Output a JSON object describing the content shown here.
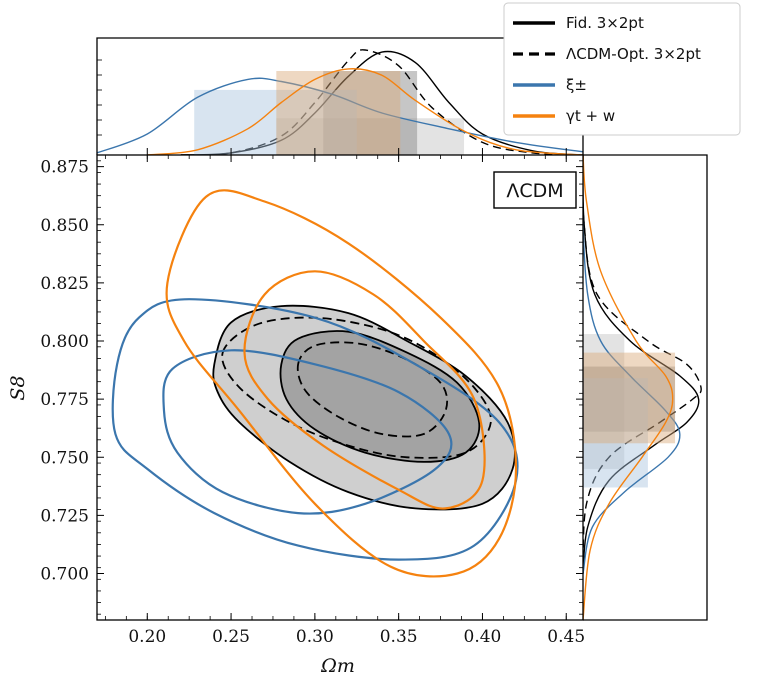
{
  "chart_data": {
    "type": "contour",
    "model_label": "ΛCDM",
    "xlabel": "Ωm",
    "ylabel": "S8",
    "xlim": [
      0.17,
      0.46
    ],
    "ylim": [
      0.68,
      0.88
    ],
    "xticks": [
      "0.20",
      "0.25",
      "0.30",
      "0.35",
      "0.40",
      "0.45"
    ],
    "yticks": [
      "0.700",
      "0.725",
      "0.750",
      "0.775",
      "0.800",
      "0.825",
      "0.850",
      "0.875"
    ],
    "legend_position": "top-right",
    "series": [
      {
        "name": "Fid. 3×2pt",
        "color": "#000000",
        "linestyle": "solid",
        "fill": "#808080",
        "mean": [
          0.338,
          0.775
        ],
        "contours": [
          {
            "level": "95%",
            "points": [
              [
                0.24,
                0.79
              ],
              [
                0.25,
                0.808
              ],
              [
                0.28,
                0.815
              ],
              [
                0.32,
                0.812
              ],
              [
                0.355,
                0.8
              ],
              [
                0.39,
                0.785
              ],
              [
                0.415,
                0.765
              ],
              [
                0.418,
                0.745
              ],
              [
                0.4,
                0.73
              ],
              [
                0.36,
                0.728
              ],
              [
                0.32,
                0.735
              ],
              [
                0.285,
                0.748
              ],
              [
                0.255,
                0.765
              ],
              [
                0.242,
                0.778
              ]
            ]
          },
          {
            "level": "68%",
            "points": [
              [
                0.28,
                0.79
              ],
              [
                0.29,
                0.801
              ],
              [
                0.32,
                0.804
              ],
              [
                0.355,
                0.795
              ],
              [
                0.385,
                0.782
              ],
              [
                0.398,
                0.765
              ],
              [
                0.39,
                0.752
              ],
              [
                0.365,
                0.748
              ],
              [
                0.33,
                0.752
              ],
              [
                0.3,
                0.762
              ],
              [
                0.283,
                0.775
              ]
            ]
          }
        ],
        "marginal_x": {
          "x": [
            0.22,
            0.25,
            0.28,
            0.3,
            0.32,
            0.34,
            0.36,
            0.38,
            0.4,
            0.43,
            0.46
          ],
          "density": [
            0.0,
            0.02,
            0.14,
            0.4,
            0.75,
            0.98,
            0.88,
            0.5,
            0.2,
            0.04,
            0.0
          ]
        },
        "marginal_y": {
          "y": [
            0.7,
            0.72,
            0.74,
            0.755,
            0.765,
            0.775,
            0.785,
            0.8,
            0.82,
            0.85,
            0.88
          ],
          "density": [
            0.0,
            0.04,
            0.22,
            0.6,
            0.88,
            0.98,
            0.82,
            0.4,
            0.1,
            0.01,
            0.0
          ]
        },
        "interval_x_68": [
          0.305,
          0.361
        ],
        "interval_x_95": [
          0.277,
          0.389
        ],
        "interval_y_68": [
          0.761,
          0.789
        ],
        "interval_y_95": [
          0.745,
          0.803
        ]
      },
      {
        "name": "ΛCDM-Opt. 3×2pt",
        "color": "#000000",
        "linestyle": "dashed",
        "fill": "none",
        "mean": [
          0.33,
          0.78
        ],
        "contours": [
          {
            "level": "95%",
            "points": [
              [
                0.245,
                0.795
              ],
              [
                0.265,
                0.807
              ],
              [
                0.3,
                0.81
              ],
              [
                0.34,
                0.805
              ],
              [
                0.37,
                0.795
              ],
              [
                0.395,
                0.78
              ],
              [
                0.405,
                0.765
              ],
              [
                0.39,
                0.752
              ],
              [
                0.355,
                0.75
              ],
              [
                0.32,
                0.755
              ],
              [
                0.285,
                0.765
              ],
              [
                0.255,
                0.78
              ]
            ]
          },
          {
            "level": "68%",
            "points": [
              [
                0.29,
                0.79
              ],
              [
                0.3,
                0.798
              ],
              [
                0.325,
                0.799
              ],
              [
                0.352,
                0.793
              ],
              [
                0.375,
                0.782
              ],
              [
                0.378,
                0.77
              ],
              [
                0.365,
                0.76
              ],
              [
                0.34,
                0.76
              ],
              [
                0.315,
                0.767
              ],
              [
                0.295,
                0.778
              ]
            ]
          }
        ],
        "marginal_x": {
          "x": [
            0.22,
            0.25,
            0.28,
            0.3,
            0.32,
            0.33,
            0.35,
            0.37,
            0.4,
            0.43,
            0.46
          ],
          "density": [
            0.0,
            0.02,
            0.18,
            0.5,
            0.9,
            1.0,
            0.85,
            0.45,
            0.12,
            0.02,
            0.0
          ]
        },
        "marginal_y": {
          "y": [
            0.7,
            0.73,
            0.75,
            0.765,
            0.775,
            0.78,
            0.79,
            0.8,
            0.82,
            0.85,
            0.88
          ],
          "density": [
            0.0,
            0.03,
            0.22,
            0.65,
            0.93,
            1.0,
            0.88,
            0.55,
            0.12,
            0.01,
            0.0
          ]
        }
      },
      {
        "name": "ξ±",
        "color": "#3b76ad",
        "linestyle": "solid",
        "fill": "#a9c4de",
        "mean": [
          0.265,
          0.763
        ],
        "contours": [
          {
            "level": "95%",
            "points": [
              [
                0.181,
                0.76
              ],
              [
                0.182,
                0.79
              ],
              [
                0.195,
                0.81
              ],
              [
                0.225,
                0.818
              ],
              [
                0.3,
                0.81
              ],
              [
                0.36,
                0.79
              ],
              [
                0.41,
                0.765
              ],
              [
                0.42,
                0.74
              ],
              [
                0.395,
                0.712
              ],
              [
                0.35,
                0.706
              ],
              [
                0.29,
                0.712
              ],
              [
                0.24,
                0.726
              ],
              [
                0.2,
                0.745
              ]
            ]
          },
          {
            "level": "68%",
            "points": [
              [
                0.21,
                0.77
              ],
              [
                0.215,
                0.788
              ],
              [
                0.25,
                0.796
              ],
              [
                0.3,
                0.79
              ],
              [
                0.35,
                0.778
              ],
              [
                0.38,
                0.76
              ],
              [
                0.372,
                0.745
              ],
              [
                0.33,
                0.73
              ],
              [
                0.29,
                0.726
              ],
              [
                0.245,
                0.735
              ],
              [
                0.218,
                0.752
              ]
            ]
          }
        ],
        "marginal_x": {
          "x": [
            0.17,
            0.2,
            0.23,
            0.26,
            0.28,
            0.31,
            0.34,
            0.38,
            0.42,
            0.46
          ],
          "density": [
            0.02,
            0.2,
            0.55,
            0.72,
            0.7,
            0.58,
            0.4,
            0.25,
            0.12,
            0.03
          ]
        },
        "marginal_y": {
          "y": [
            0.7,
            0.72,
            0.735,
            0.75,
            0.76,
            0.77,
            0.785,
            0.8,
            0.82,
            0.85,
            0.88
          ],
          "density": [
            0.0,
            0.08,
            0.35,
            0.72,
            0.82,
            0.7,
            0.4,
            0.15,
            0.04,
            0.0,
            0.0
          ]
        },
        "interval_x_68": [
          0.228,
          0.325
        ],
        "interval_y_68": [
          0.737,
          0.784
        ]
      },
      {
        "name": "γt + w",
        "color": "#f5820f",
        "linestyle": "solid",
        "fill": "#d9a878",
        "mean": [
          0.315,
          0.775
        ],
        "contours": [
          {
            "level": "95%",
            "points": [
              [
                0.212,
                0.825
              ],
              [
                0.235,
                0.862
              ],
              [
                0.27,
                0.86
              ],
              [
                0.32,
                0.842
              ],
              [
                0.375,
                0.81
              ],
              [
                0.41,
                0.78
              ],
              [
                0.42,
                0.745
              ],
              [
                0.41,
                0.715
              ],
              [
                0.385,
                0.7
              ],
              [
                0.345,
                0.703
              ],
              [
                0.3,
                0.73
              ],
              [
                0.255,
                0.77
              ],
              [
                0.222,
                0.8
              ]
            ]
          },
          {
            "level": "68%",
            "points": [
              [
                0.258,
                0.795
              ],
              [
                0.27,
                0.82
              ],
              [
                0.3,
                0.83
              ],
              [
                0.335,
                0.82
              ],
              [
                0.365,
                0.8
              ],
              [
                0.395,
                0.775
              ],
              [
                0.4,
                0.74
              ],
              [
                0.378,
                0.728
              ],
              [
                0.35,
                0.736
              ],
              [
                0.305,
                0.755
              ],
              [
                0.272,
                0.775
              ]
            ]
          }
        ],
        "marginal_x": {
          "x": [
            0.2,
            0.23,
            0.26,
            0.28,
            0.3,
            0.32,
            0.34,
            0.36,
            0.39,
            0.42,
            0.46
          ],
          "density": [
            0.0,
            0.05,
            0.25,
            0.5,
            0.72,
            0.82,
            0.76,
            0.52,
            0.22,
            0.05,
            0.0
          ]
        },
        "marginal_y": {
          "y": [
            0.68,
            0.71,
            0.73,
            0.75,
            0.765,
            0.775,
            0.785,
            0.8,
            0.83,
            0.86,
            0.88
          ],
          "density": [
            0.0,
            0.06,
            0.22,
            0.5,
            0.7,
            0.76,
            0.7,
            0.45,
            0.15,
            0.03,
            0.0
          ]
        },
        "interval_x_68": [
          0.277,
          0.351
        ],
        "interval_y_68": [
          0.756,
          0.795
        ]
      }
    ]
  }
}
